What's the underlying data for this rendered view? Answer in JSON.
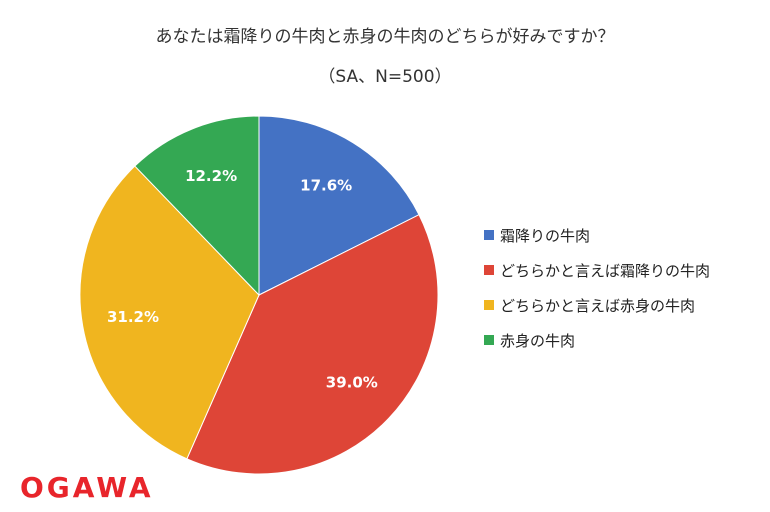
{
  "brand": {
    "logo_text": "OGAWA",
    "color": "#e8252b"
  },
  "chart_data": {
    "type": "pie",
    "title": "あなたは霜降りの牛肉と赤身の牛肉のどちらが好みですか？",
    "subtitle": "（SA、N=500）",
    "start_angle_deg": 0,
    "direction": "clockwise",
    "legend_position": "right",
    "slices": [
      {
        "label": "霜降りの牛肉",
        "value": 17.6,
        "value_label": "17.6%",
        "color": "#4472c4"
      },
      {
        "label": "どちらかと言えば霜降りの牛肉",
        "value": 39.0,
        "value_label": "39.0%",
        "color": "#de4537"
      },
      {
        "label": "どちらかと言えば赤身の牛肉",
        "value": 31.2,
        "value_label": "31.2%",
        "color": "#f0b51f"
      },
      {
        "label": "赤身の牛肉",
        "value": 12.2,
        "value_label": "12.2%",
        "color": "#34a853"
      }
    ]
  }
}
